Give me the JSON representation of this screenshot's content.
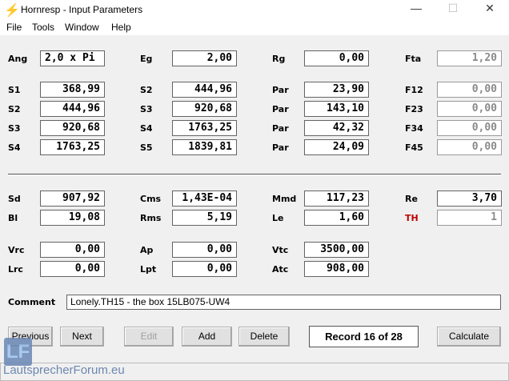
{
  "window": {
    "title": "Hornresp - Input Parameters",
    "minimize": "—",
    "maximize": "☐",
    "close": "✕"
  },
  "menu": [
    "File",
    "Tools",
    "Window",
    "Help"
  ],
  "params": {
    "Ang": {
      "label": "Ang",
      "value": "2,0 x Pi"
    },
    "Eg": {
      "label": "Eg",
      "value": "2,00"
    },
    "Rg": {
      "label": "Rg",
      "value": "0,00"
    },
    "Fta": {
      "label": "Fta",
      "value": "1,20"
    },
    "S1": {
      "label": "S1",
      "value": "368,99"
    },
    "S2": {
      "label": "S2",
      "value": "444,96"
    },
    "S3": {
      "label": "S3",
      "value": "920,68"
    },
    "S4": {
      "label": "S4",
      "value": "1763,25"
    },
    "S2b": {
      "label": "S2",
      "value": "444,96"
    },
    "S3b": {
      "label": "S3",
      "value": "920,68"
    },
    "S4b": {
      "label": "S4",
      "value": "1763,25"
    },
    "S5": {
      "label": "S5",
      "value": "1839,81"
    },
    "Par1": {
      "label": "Par",
      "value": "23,90"
    },
    "Par2": {
      "label": "Par",
      "value": "143,10"
    },
    "Par3": {
      "label": "Par",
      "value": "42,32"
    },
    "Par4": {
      "label": "Par",
      "value": "24,09"
    },
    "F12": {
      "label": "F12",
      "value": "0,00"
    },
    "F23": {
      "label": "F23",
      "value": "0,00"
    },
    "F34": {
      "label": "F34",
      "value": "0,00"
    },
    "F45": {
      "label": "F45",
      "value": "0,00"
    },
    "Sd": {
      "label": "Sd",
      "value": "907,92"
    },
    "Bl": {
      "label": "Bl",
      "value": "19,08"
    },
    "Cms": {
      "label": "Cms",
      "value": "1,43E-04"
    },
    "Rms": {
      "label": "Rms",
      "value": "5,19"
    },
    "Mmd": {
      "label": "Mmd",
      "value": "117,23"
    },
    "Le": {
      "label": "Le",
      "value": "1,60"
    },
    "Re": {
      "label": "Re",
      "value": "3,70"
    },
    "TH": {
      "label": "TH",
      "value": "1",
      "color": "#c00000"
    },
    "Vrc": {
      "label": "Vrc",
      "value": "0,00"
    },
    "Lrc": {
      "label": "Lrc",
      "value": "0,00"
    },
    "Ap": {
      "label": "Ap",
      "value": "0,00"
    },
    "Lpt": {
      "label": "Lpt",
      "value": "0,00"
    },
    "Vtc": {
      "label": "Vtc",
      "value": "3500,00"
    },
    "Atc": {
      "label": "Atc",
      "value": "908,00"
    }
  },
  "comment": {
    "label": "Comment",
    "value": "Lonely.TH15 - the box 15LB075-UW4"
  },
  "buttons": {
    "previous": "Previous",
    "next": "Next",
    "edit": "Edit",
    "add": "Add",
    "delete": "Delete",
    "calculate": "Calculate"
  },
  "record": "Record 16 of 28",
  "watermark": {
    "logo": "LF",
    "text": "LautsprecherForum.eu"
  }
}
